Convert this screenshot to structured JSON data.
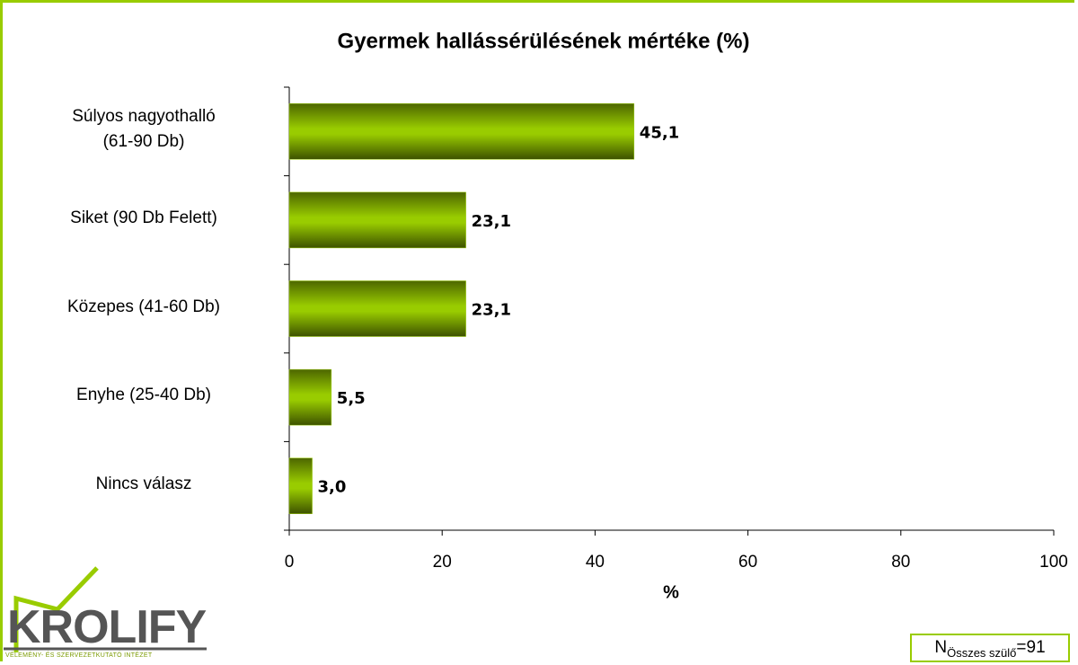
{
  "chart_data": {
    "type": "barh",
    "title": "Gyermek hallássérülésének mértéke (%)",
    "categories": [
      "Súlyos nagyothalló\n (61-90 Db)",
      "Siket (90 Db Felett)",
      "Közepes (41-60 Db)",
      "Enyhe (25-40 Db)",
      "Nincs válasz"
    ],
    "values": [
      45.1,
      23.1,
      23.1,
      5.5,
      3.0
    ],
    "value_labels": [
      "45,1",
      "23,1",
      "23,1",
      "5,5",
      "3,0"
    ],
    "color": "#99cc00",
    "xlim": [
      0,
      100
    ],
    "xticks": [
      0,
      20,
      40,
      60,
      80,
      100
    ],
    "xlabel": "%",
    "note": {
      "main": "N",
      "sub": "Összes szülő",
      "tail": "=91"
    }
  },
  "logo": {
    "brand": "KROLIFY",
    "tagline": "VÉLEMÉNY- ÉS SZERVEZETKUTATÓ INTÉZET"
  }
}
